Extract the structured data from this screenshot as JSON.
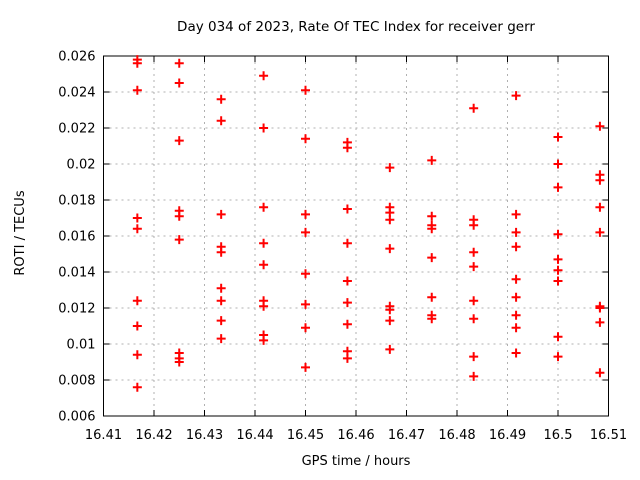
{
  "chart_data": {
    "type": "scatter",
    "title": "Day 034 of 2023, Rate Of TEC Index for receiver gerr",
    "xlabel": "GPS time / hours",
    "ylabel": "ROTI / TECUs",
    "xlim": [
      16.41,
      16.51
    ],
    "ylim": [
      0.006,
      0.026
    ],
    "xticks": [
      {
        "v": 16.41,
        "label": "16.41"
      },
      {
        "v": 16.42,
        "label": "16.42"
      },
      {
        "v": 16.43,
        "label": "16.43"
      },
      {
        "v": 16.44,
        "label": "16.44"
      },
      {
        "v": 16.45,
        "label": "16.45"
      },
      {
        "v": 16.46,
        "label": "16.46"
      },
      {
        "v": 16.47,
        "label": "16.47"
      },
      {
        "v": 16.48,
        "label": "16.48"
      },
      {
        "v": 16.49,
        "label": "16.49"
      },
      {
        "v": 16.5,
        "label": "16.5"
      },
      {
        "v": 16.51,
        "label": "16.51"
      }
    ],
    "yticks": [
      {
        "v": 0.006,
        "label": "0.006"
      },
      {
        "v": 0.008,
        "label": "0.008"
      },
      {
        "v": 0.01,
        "label": "0.01"
      },
      {
        "v": 0.012,
        "label": "0.012"
      },
      {
        "v": 0.014,
        "label": "0.014"
      },
      {
        "v": 0.016,
        "label": "0.016"
      },
      {
        "v": 0.018,
        "label": "0.018"
      },
      {
        "v": 0.02,
        "label": "0.02"
      },
      {
        "v": 0.022,
        "label": "0.022"
      },
      {
        "v": 0.024,
        "label": "0.024"
      },
      {
        "v": 0.026,
        "label": "0.026"
      }
    ],
    "grid": "dashed",
    "legend": "none",
    "colors": {
      "marker": "#ff0000",
      "grid": "#b0b0b0",
      "axis": "#000000",
      "background": "#ffffff"
    },
    "marker": {
      "shape": "plus",
      "size": 9
    },
    "series": [
      {
        "name": "ROTI",
        "points": [
          [
            16.4167,
            0.0258
          ],
          [
            16.4167,
            0.0256
          ],
          [
            16.4167,
            0.0241
          ],
          [
            16.4167,
            0.017
          ],
          [
            16.4167,
            0.0164
          ],
          [
            16.4167,
            0.0124
          ],
          [
            16.4167,
            0.011
          ],
          [
            16.4167,
            0.0094
          ],
          [
            16.4167,
            0.0076
          ],
          [
            16.425,
            0.0256
          ],
          [
            16.425,
            0.0245
          ],
          [
            16.425,
            0.0213
          ],
          [
            16.425,
            0.0174
          ],
          [
            16.425,
            0.0171
          ],
          [
            16.425,
            0.0158
          ],
          [
            16.425,
            0.0095
          ],
          [
            16.425,
            0.0092
          ],
          [
            16.425,
            0.009
          ],
          [
            16.4333,
            0.0236
          ],
          [
            16.4333,
            0.0224
          ],
          [
            16.4333,
            0.0172
          ],
          [
            16.4333,
            0.0154
          ],
          [
            16.4333,
            0.0151
          ],
          [
            16.4333,
            0.0131
          ],
          [
            16.4333,
            0.0124
          ],
          [
            16.4333,
            0.0113
          ],
          [
            16.4333,
            0.0103
          ],
          [
            16.4417,
            0.0249
          ],
          [
            16.4417,
            0.022
          ],
          [
            16.4417,
            0.0176
          ],
          [
            16.4417,
            0.0156
          ],
          [
            16.4417,
            0.0144
          ],
          [
            16.4417,
            0.0124
          ],
          [
            16.4417,
            0.0121
          ],
          [
            16.4417,
            0.0105
          ],
          [
            16.4417,
            0.0102
          ],
          [
            16.45,
            0.0241
          ],
          [
            16.45,
            0.0214
          ],
          [
            16.45,
            0.0172
          ],
          [
            16.45,
            0.0162
          ],
          [
            16.45,
            0.0139
          ],
          [
            16.45,
            0.0122
          ],
          [
            16.45,
            0.0109
          ],
          [
            16.45,
            0.0087
          ],
          [
            16.4583,
            0.0212
          ],
          [
            16.4583,
            0.0209
          ],
          [
            16.4583,
            0.0175
          ],
          [
            16.4583,
            0.0156
          ],
          [
            16.4583,
            0.0135
          ],
          [
            16.4583,
            0.0123
          ],
          [
            16.4583,
            0.0111
          ],
          [
            16.4583,
            0.0096
          ],
          [
            16.4583,
            0.0092
          ],
          [
            16.4667,
            0.0198
          ],
          [
            16.4667,
            0.0176
          ],
          [
            16.4667,
            0.0173
          ],
          [
            16.4667,
            0.0169
          ],
          [
            16.4667,
            0.0153
          ],
          [
            16.4667,
            0.0121
          ],
          [
            16.4667,
            0.0119
          ],
          [
            16.4667,
            0.0113
          ],
          [
            16.4667,
            0.0097
          ],
          [
            16.475,
            0.0202
          ],
          [
            16.475,
            0.0171
          ],
          [
            16.475,
            0.0166
          ],
          [
            16.475,
            0.0164
          ],
          [
            16.475,
            0.0148
          ],
          [
            16.475,
            0.0126
          ],
          [
            16.475,
            0.0116
          ],
          [
            16.475,
            0.0114
          ],
          [
            16.4833,
            0.0231
          ],
          [
            16.4833,
            0.0169
          ],
          [
            16.4833,
            0.0166
          ],
          [
            16.4833,
            0.0151
          ],
          [
            16.4833,
            0.0143
          ],
          [
            16.4833,
            0.0124
          ],
          [
            16.4833,
            0.0114
          ],
          [
            16.4833,
            0.0093
          ],
          [
            16.4833,
            0.0082
          ],
          [
            16.4917,
            0.0238
          ],
          [
            16.4917,
            0.0172
          ],
          [
            16.4917,
            0.0162
          ],
          [
            16.4917,
            0.0154
          ],
          [
            16.4917,
            0.0136
          ],
          [
            16.4917,
            0.0126
          ],
          [
            16.4917,
            0.0116
          ],
          [
            16.4917,
            0.0109
          ],
          [
            16.4917,
            0.0095
          ],
          [
            16.5,
            0.0215
          ],
          [
            16.5,
            0.02
          ],
          [
            16.5,
            0.0187
          ],
          [
            16.5,
            0.0161
          ],
          [
            16.5,
            0.0147
          ],
          [
            16.5,
            0.0141
          ],
          [
            16.5,
            0.0135
          ],
          [
            16.5,
            0.0104
          ],
          [
            16.5,
            0.0093
          ],
          [
            16.5083,
            0.0221
          ],
          [
            16.5083,
            0.0194
          ],
          [
            16.5083,
            0.0191
          ],
          [
            16.5083,
            0.0176
          ],
          [
            16.5083,
            0.0162
          ],
          [
            16.5083,
            0.0121
          ],
          [
            16.5083,
            0.012
          ],
          [
            16.5083,
            0.0112
          ],
          [
            16.5083,
            0.0084
          ]
        ]
      }
    ]
  }
}
